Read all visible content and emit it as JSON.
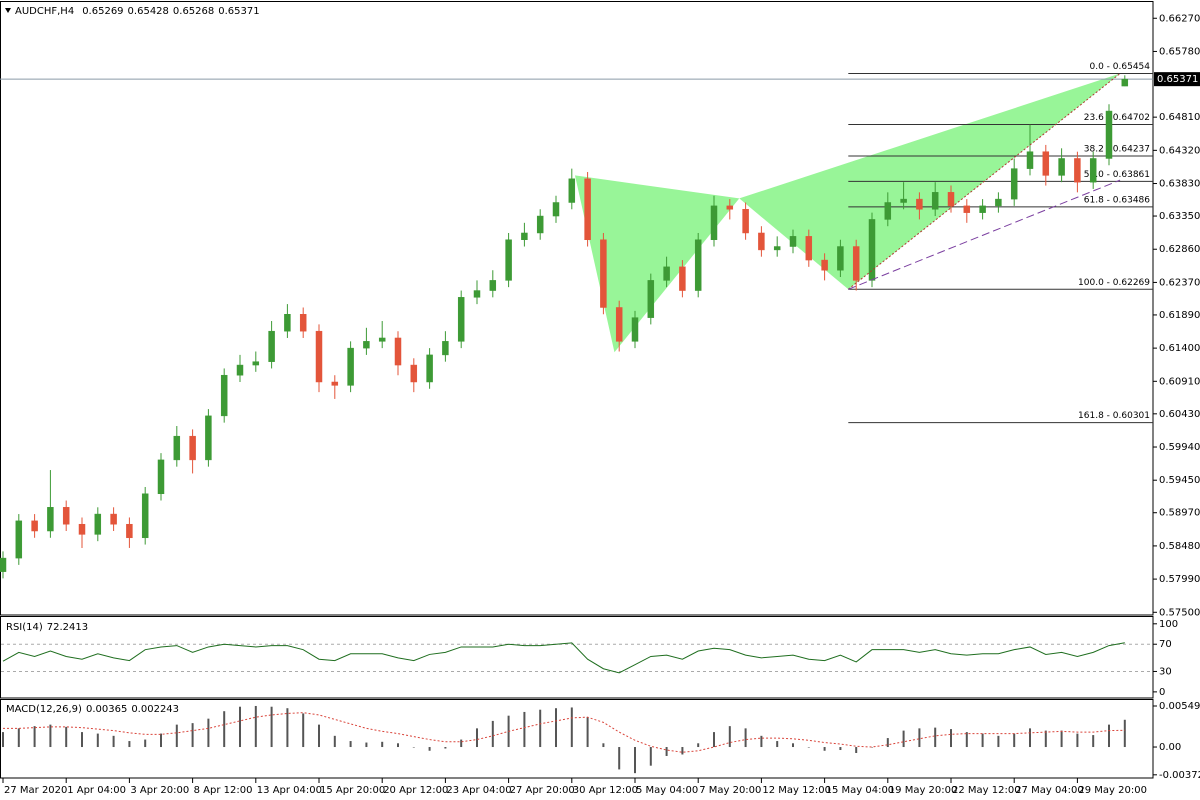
{
  "chart_data": [
    {
      "type": "candlestick",
      "title": "AUDCHF,H4",
      "categories": [
        "27 Mar 2020",
        null,
        null,
        null,
        "1 Apr 04:00",
        null,
        null,
        null,
        "3 Apr 20:00",
        null,
        null,
        null,
        "8 Apr 12:00",
        null,
        null,
        null,
        "13 Apr 04:00",
        null,
        null,
        null,
        "15 Apr 20:00",
        null,
        null,
        null,
        "20 Apr 12:00",
        null,
        null,
        null,
        "23 Apr 04:00",
        null,
        null,
        null,
        "27 Apr 20:00",
        null,
        null,
        null,
        "30 Apr 12:00",
        null,
        null,
        null,
        "5 May 04:00",
        null,
        null,
        null,
        "7 May 20:00",
        null,
        null,
        null,
        "12 May 12:00",
        null,
        null,
        null,
        "15 May 04:00",
        null,
        null,
        null,
        "19 May 20:00",
        null,
        null,
        null,
        "22 May 12:00",
        null,
        null,
        null,
        "27 May 04:00",
        null,
        null,
        null,
        "29 May 20:00",
        null,
        null,
        null
      ],
      "open": [
        0.581,
        0.583,
        0.5885,
        0.587,
        0.5905,
        0.588,
        0.5865,
        0.5895,
        0.588,
        0.586,
        0.5925,
        0.5975,
        0.601,
        0.5975,
        0.604,
        0.61,
        0.6115,
        0.612,
        0.6165,
        0.619,
        0.6165,
        0.609,
        0.6085,
        0.614,
        0.615,
        0.6155,
        0.6115,
        0.609,
        0.613,
        0.615,
        0.6215,
        0.6225,
        0.624,
        0.63,
        0.631,
        0.6335,
        0.6355,
        0.639,
        0.63,
        0.62,
        0.615,
        0.6185,
        0.624,
        0.626,
        0.6225,
        0.63,
        0.635,
        0.6345,
        0.631,
        0.6285,
        0.629,
        0.6305,
        0.627,
        0.6255,
        0.629,
        0.624,
        0.633,
        0.6355,
        0.636,
        0.6345,
        0.637,
        0.635,
        0.634,
        0.635,
        0.636,
        0.6405,
        0.643,
        0.6395,
        0.642,
        0.6385,
        0.642,
        0.65269
      ],
      "high": [
        0.584,
        0.5895,
        0.5895,
        0.596,
        0.5915,
        0.589,
        0.5905,
        0.5905,
        0.589,
        0.5935,
        0.5985,
        0.6025,
        0.602,
        0.605,
        0.611,
        0.613,
        0.6135,
        0.618,
        0.6205,
        0.62,
        0.6175,
        0.61,
        0.615,
        0.617,
        0.618,
        0.6165,
        0.6125,
        0.614,
        0.6165,
        0.6225,
        0.624,
        0.6255,
        0.631,
        0.6325,
        0.6345,
        0.6365,
        0.6405,
        0.64,
        0.631,
        0.621,
        0.6195,
        0.625,
        0.6275,
        0.627,
        0.631,
        0.6365,
        0.636,
        0.6355,
        0.632,
        0.6305,
        0.6315,
        0.6315,
        0.628,
        0.63,
        0.63,
        0.634,
        0.637,
        0.6385,
        0.637,
        0.6385,
        0.638,
        0.636,
        0.636,
        0.637,
        0.642,
        0.647,
        0.644,
        0.6435,
        0.643,
        0.643,
        0.65,
        0.65428
      ],
      "low": [
        0.58,
        0.582,
        0.586,
        0.586,
        0.587,
        0.5845,
        0.5855,
        0.587,
        0.5845,
        0.585,
        0.5915,
        0.5965,
        0.5955,
        0.5965,
        0.603,
        0.609,
        0.6105,
        0.611,
        0.6155,
        0.6155,
        0.6075,
        0.6065,
        0.6075,
        0.613,
        0.614,
        0.61,
        0.6075,
        0.608,
        0.612,
        0.614,
        0.6205,
        0.6215,
        0.623,
        0.629,
        0.63,
        0.6325,
        0.6345,
        0.629,
        0.619,
        0.6135,
        0.614,
        0.6175,
        0.623,
        0.6215,
        0.6215,
        0.629,
        0.633,
        0.63,
        0.6275,
        0.6275,
        0.628,
        0.626,
        0.624,
        0.6245,
        0.6225,
        0.623,
        0.632,
        0.6345,
        0.633,
        0.6335,
        0.634,
        0.6325,
        0.633,
        0.634,
        0.635,
        0.6395,
        0.638,
        0.6385,
        0.637,
        0.6375,
        0.641,
        0.65268
      ],
      "close": [
        0.583,
        0.5885,
        0.587,
        0.5905,
        0.588,
        0.5865,
        0.5895,
        0.588,
        0.586,
        0.5925,
        0.5975,
        0.601,
        0.5975,
        0.604,
        0.61,
        0.6115,
        0.612,
        0.6165,
        0.619,
        0.6165,
        0.609,
        0.6085,
        0.614,
        0.615,
        0.6155,
        0.6115,
        0.609,
        0.613,
        0.615,
        0.6215,
        0.6225,
        0.624,
        0.63,
        0.631,
        0.6335,
        0.6355,
        0.639,
        0.63,
        0.62,
        0.615,
        0.6185,
        0.624,
        0.626,
        0.6225,
        0.63,
        0.635,
        0.6345,
        0.631,
        0.6285,
        0.629,
        0.6305,
        0.627,
        0.6255,
        0.629,
        0.624,
        0.633,
        0.6355,
        0.636,
        0.6345,
        0.637,
        0.635,
        0.634,
        0.635,
        0.636,
        0.6405,
        0.643,
        0.6395,
        0.642,
        0.6385,
        0.642,
        0.649,
        0.65371
      ],
      "up_color": "#3d9a35",
      "down_color": "#e3553a",
      "ylim": [
        0.5746,
        0.6651
      ],
      "yticks": [
        0.6627,
        0.6578,
        0.6481,
        0.6432,
        0.6383,
        0.6335,
        0.6286,
        0.6237,
        0.6189,
        0.614,
        0.6091,
        0.6043,
        0.5994,
        0.5945,
        0.5897,
        0.5848,
        0.5799,
        0.575
      ],
      "ytick_labels": [
        "0.66270",
        "0.65780",
        "0.64810",
        "0.64320",
        "0.63830",
        "0.63350",
        "0.62860",
        "0.62370",
        "0.61890",
        "0.61400",
        "0.60910",
        "0.60430",
        "0.59940",
        "0.59450",
        "0.58970",
        "0.58480",
        "0.57990",
        "0.57500"
      ],
      "pattern": {
        "x": [
          36.2,
          38.7,
          46.6,
          53.5,
          70.7
        ],
        "y": [
          0.6395,
          0.6134,
          0.6361,
          0.62269,
          0.65454
        ],
        "color": "#98f598"
      },
      "fib_start": 53.5,
      "fib_levels": [
        {
          "value": 0.65454,
          "label": "0.0 - 0.65454"
        },
        {
          "value": 0.64702,
          "label": "23.6 - 0.64702"
        },
        {
          "value": 0.64237,
          "label": "38.2 - 0.64237"
        },
        {
          "value": 0.63861,
          "label": "50.0 - 0.63861"
        },
        {
          "value": 0.63486,
          "label": "61.8 - 0.63486"
        },
        {
          "value": 0.62269,
          "label": "100.0 - 0.62269"
        },
        {
          "value": 0.60301,
          "label": "161.8 - 0.60301"
        }
      ],
      "trendlines": [
        {
          "x": [
            53.5,
            70.7
          ],
          "y": [
            0.62269,
            0.65454
          ],
          "color": "#b03a2e",
          "dash": "dots"
        },
        {
          "x": [
            53.5,
            70.7
          ],
          "y": [
            0.62269,
            0.6388
          ],
          "color": "#7b3fa0",
          "dash": "dash"
        }
      ]
    },
    {
      "type": "line",
      "name": "RSI(14)",
      "values": [
        45,
        58,
        52,
        60,
        52,
        48,
        56,
        50,
        46,
        62,
        66,
        68,
        58,
        66,
        70,
        68,
        66,
        68,
        68,
        62,
        48,
        46,
        56,
        56,
        56,
        50,
        46,
        55,
        58,
        66,
        66,
        66,
        70,
        68,
        68,
        70,
        72,
        48,
        34,
        28,
        40,
        52,
        54,
        48,
        60,
        64,
        62,
        54,
        50,
        52,
        54,
        48,
        46,
        54,
        44,
        62,
        62,
        62,
        58,
        62,
        56,
        54,
        56,
        56,
        62,
        66,
        55,
        58,
        52,
        58,
        68,
        72.2413
      ],
      "color": "#1f6e1f",
      "ylim": [
        -9,
        110
      ],
      "yticks": [
        100,
        70,
        30,
        0
      ],
      "levels": [
        70,
        30
      ]
    },
    {
      "type": "bar",
      "name": "MACD(12,26,9)",
      "values": [
        0.002,
        0.0025,
        0.0028,
        0.003,
        0.0027,
        0.002,
        0.0018,
        0.0015,
        0.0008,
        0.001,
        0.0018,
        0.003,
        0.0032,
        0.0038,
        0.0048,
        0.0054,
        0.0055,
        0.0054,
        0.0052,
        0.0045,
        0.003,
        0.0015,
        0.0008,
        0.0006,
        0.0007,
        0.0005,
        0.0,
        -0.0005,
        -0.0002,
        0.001,
        0.0025,
        0.0035,
        0.0042,
        0.0047,
        0.005,
        0.0052,
        0.0053,
        0.004,
        0.0005,
        -0.003,
        -0.0035,
        -0.0025,
        -0.0012,
        -0.001,
        0.0005,
        0.002,
        0.0028,
        0.0025,
        0.0015,
        0.0008,
        0.0005,
        0.0,
        -0.0005,
        -0.0004,
        -0.0008,
        0.0,
        0.0012,
        0.0022,
        0.0025,
        0.0026,
        0.0024,
        0.002,
        0.0018,
        0.0015,
        0.0018,
        0.0025,
        0.0022,
        0.0022,
        0.0018,
        0.0016,
        0.003,
        0.00365
      ],
      "signal": [
        0.0025,
        0.0025,
        0.0026,
        0.0027,
        0.0027,
        0.0026,
        0.0024,
        0.0022,
        0.0019,
        0.0017,
        0.0017,
        0.0019,
        0.0022,
        0.0025,
        0.003,
        0.0035,
        0.004,
        0.0043,
        0.0045,
        0.0046,
        0.0043,
        0.0037,
        0.0031,
        0.0025,
        0.0021,
        0.0018,
        0.0014,
        0.001,
        0.0007,
        0.0007,
        0.001,
        0.0015,
        0.0021,
        0.0026,
        0.0031,
        0.0035,
        0.0039,
        0.004,
        0.0033,
        0.002,
        0.0009,
        0.0001,
        -0.0004,
        -0.0007,
        -0.0005,
        0.0,
        0.0006,
        0.001,
        0.0012,
        0.0012,
        0.0011,
        0.0009,
        0.0006,
        0.0004,
        0.0001,
        0.0,
        0.0003,
        0.0007,
        0.0011,
        0.0015,
        0.0017,
        0.0018,
        0.0018,
        0.0018,
        0.0018,
        0.0019,
        0.002,
        0.0021,
        0.002,
        0.002,
        0.0022,
        0.002243
      ],
      "color": "#555555",
      "signal_color": "#d9443a",
      "ylim": [
        -0.00415,
        0.0063
      ],
      "yticks": [
        0.005495,
        {
          "value": 0,
          "label": "0.00"
        },
        -0.003723
      ]
    }
  ]
}
